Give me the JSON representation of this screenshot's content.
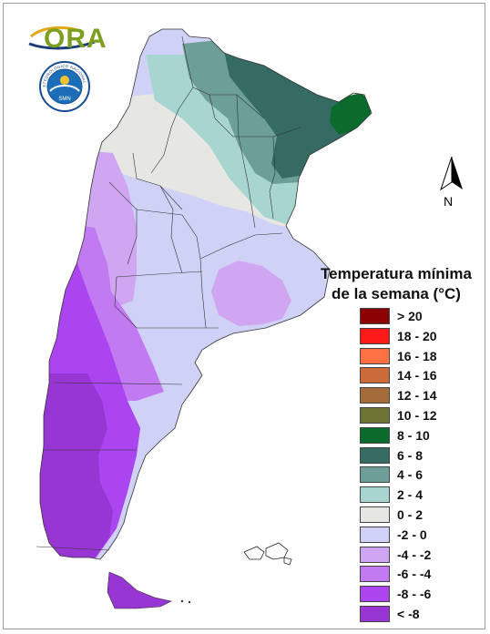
{
  "logo": {
    "text": "ORA"
  },
  "seal": {
    "text": "SERVICIO METEOROLOGICO NACIONAL · ARGENTINA",
    "center": "SMN"
  },
  "compass": {
    "label": "N"
  },
  "legend": {
    "title_line1": "Temperatura mínima",
    "title_line2": "de la semana (°C)",
    "items": [
      {
        "label": "> 20",
        "color": "#8b0000"
      },
      {
        "label": "18 - 20",
        "color": "#ff1a1a"
      },
      {
        "label": "16 - 18",
        "color": "#ff7043"
      },
      {
        "label": "14 - 16",
        "color": "#cd6a3a"
      },
      {
        "label": "12 - 14",
        "color": "#a46c3a"
      },
      {
        "label": "10 - 12",
        "color": "#6f7435"
      },
      {
        "label": "8 - 10",
        "color": "#0b6b2c"
      },
      {
        "label": "6 - 8",
        "color": "#356b63"
      },
      {
        "label": "4 - 6",
        "color": "#6e9e98"
      },
      {
        "label": "2 - 4",
        "color": "#a6d6cf"
      },
      {
        "label": "0 - 2",
        "color": "#e6e6e3"
      },
      {
        "label": "-2 - 0",
        "color": "#cfd2f6"
      },
      {
        "label": "-4 - -2",
        "color": "#d0a6f2"
      },
      {
        "label": "-6 - -4",
        "color": "#c27af2"
      },
      {
        "label": "-8 - -6",
        "color": "#ab45f0"
      },
      {
        "label": "< -8",
        "color": "#9836d4"
      }
    ]
  }
}
